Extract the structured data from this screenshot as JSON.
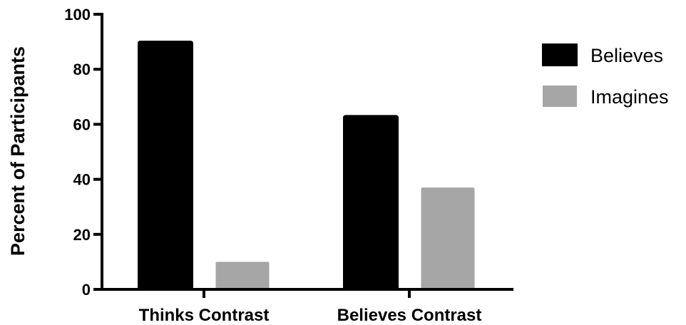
{
  "chart_data": {
    "type": "bar",
    "title": "",
    "xlabel": "",
    "ylabel": "Percent of Participants",
    "ylim": [
      0,
      100
    ],
    "yticks": [
      "0",
      "20",
      "40",
      "60",
      "80",
      "100"
    ],
    "categories": [
      "Thinks Contrast",
      "Believes Contrast"
    ],
    "series": [
      {
        "name": "Believes",
        "values": [
          90,
          63
        ],
        "color": "#000000"
      },
      {
        "name": "Imagines",
        "values": [
          10,
          37
        ],
        "color": "#a6a6a6"
      }
    ],
    "grid": false,
    "legend": "right"
  }
}
